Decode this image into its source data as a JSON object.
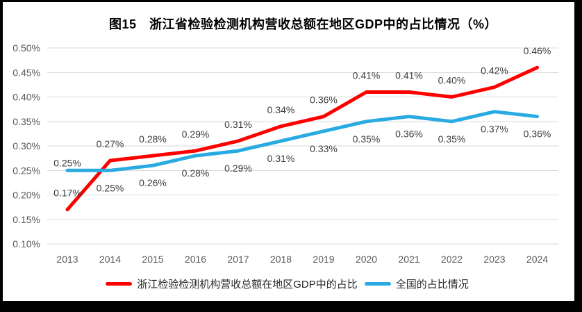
{
  "figure": {
    "outer_background": "#000000",
    "canvas_background": "#ffffff"
  },
  "chart_data": {
    "type": "line",
    "title": "图15　浙江省检验检测机构营收总额在地区GDP中的占比情况（%）",
    "categories": [
      "2013",
      "2014",
      "2015",
      "2016",
      "2017",
      "2018",
      "2019",
      "2020",
      "2021",
      "2022",
      "2023",
      "2024"
    ],
    "series": [
      {
        "name": "浙江检验检测机构营收总额在地区GDP中的占比",
        "color": "#ff0000",
        "values": [
          0.17,
          0.27,
          0.28,
          0.29,
          0.31,
          0.34,
          0.36,
          0.41,
          0.41,
          0.4,
          0.42,
          0.46
        ],
        "labels": [
          "0.17%",
          "0.27%",
          "0.28%",
          "0.29%",
          "0.31%",
          "0.34%",
          "0.36%",
          "0.41%",
          "0.41%",
          "0.40%",
          "0.42%",
          "0.46%"
        ],
        "label_position": "above",
        "label_position_overrides": {}
      },
      {
        "name": "全国的占比情况",
        "color": "#29abe2",
        "values": [
          0.25,
          0.25,
          0.26,
          0.28,
          0.29,
          0.31,
          0.33,
          0.35,
          0.36,
          0.35,
          0.37,
          0.36
        ],
        "labels": [
          "0.25%",
          "0.25%",
          "0.26%",
          "0.28%",
          "0.29%",
          "0.31%",
          "0.33%",
          "0.35%",
          "0.36%",
          "0.35%",
          "0.37%",
          "0.36%"
        ],
        "label_position": "below",
        "label_position_overrides": {
          "0": "above"
        }
      }
    ],
    "xlabel": "",
    "ylabel": "",
    "ylim": [
      0.1,
      0.5
    ],
    "yticks": [
      "0.50%",
      "0.45%",
      "0.40%",
      "0.35%",
      "0.30%",
      "0.25%",
      "0.20%",
      "0.15%",
      "0.10%"
    ],
    "grid": true,
    "legend_position": "bottom",
    "colors": {
      "gridline": "#d9d9d9",
      "axis_text": "#595959",
      "data_label": "#3d3d3d",
      "title_text": "#000000"
    }
  }
}
